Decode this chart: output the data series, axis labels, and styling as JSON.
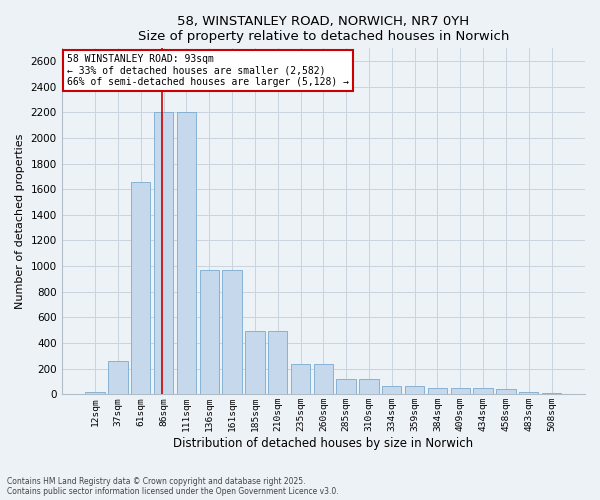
{
  "title1": "58, WINSTANLEY ROAD, NORWICH, NR7 0YH",
  "title2": "Size of property relative to detached houses in Norwich",
  "xlabel": "Distribution of detached houses by size in Norwich",
  "ylabel": "Number of detached properties",
  "categories": [
    "12sqm",
    "37sqm",
    "61sqm",
    "86sqm",
    "111sqm",
    "136sqm",
    "161sqm",
    "185sqm",
    "210sqm",
    "235sqm",
    "260sqm",
    "285sqm",
    "310sqm",
    "334sqm",
    "359sqm",
    "384sqm",
    "409sqm",
    "434sqm",
    "458sqm",
    "483sqm",
    "508sqm"
  ],
  "values": [
    18,
    260,
    1660,
    2200,
    2200,
    970,
    970,
    490,
    490,
    235,
    235,
    120,
    120,
    65,
    65,
    45,
    45,
    45,
    40,
    15,
    8
  ],
  "bar_color": "#c5d8ec",
  "bar_edge_color": "#7aaad0",
  "vline_x_index": 3,
  "vline_color": "#cc0000",
  "annotation_line1": "58 WINSTANLEY ROAD: 93sqm",
  "annotation_line2": "← 33% of detached houses are smaller (2,582)",
  "annotation_line3": "66% of semi-detached houses are larger (5,128) →",
  "annotation_box_facecolor": "#ffffff",
  "annotation_box_edgecolor": "#cc0000",
  "ylim_max": 2700,
  "yticks": [
    0,
    200,
    400,
    600,
    800,
    1000,
    1200,
    1400,
    1600,
    1800,
    2000,
    2200,
    2400,
    2600
  ],
  "bg_color": "#edf2f7",
  "grid_color": "#c8d4de",
  "footer1": "Contains HM Land Registry data © Crown copyright and database right 2025.",
  "footer2": "Contains public sector information licensed under the Open Government Licence v3.0."
}
